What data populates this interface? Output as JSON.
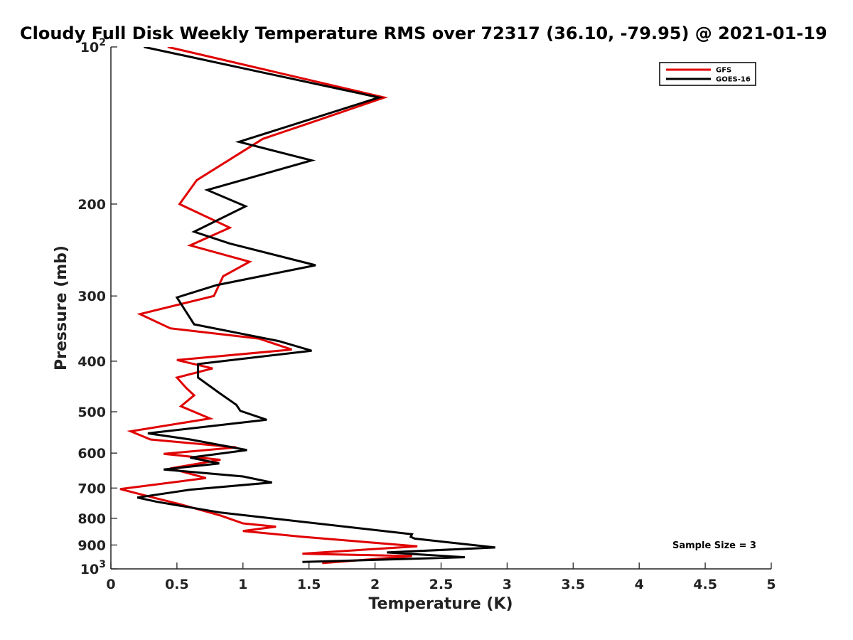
{
  "chart_data": {
    "type": "line",
    "title": "Cloudy Full Disk Weekly Temperature RMS over 72317 (36.10, -79.95) @ 2021-01-19",
    "xlabel": "Temperature (K)",
    "ylabel": "Pressure (mb)",
    "xlim": [
      0,
      5
    ],
    "ylim": [
      1000,
      100
    ],
    "yscale": "log",
    "y_reversed": true,
    "xticks": [
      0,
      0.5,
      1,
      1.5,
      2,
      2.5,
      3,
      3.5,
      4,
      4.5,
      5
    ],
    "xtick_labels": [
      "0",
      "0.5",
      "1",
      "1.5",
      "2",
      "2.5",
      "3",
      "3.5",
      "4",
      "4.5",
      "5"
    ],
    "yticks": [
      100,
      200,
      300,
      400,
      500,
      600,
      700,
      800,
      900,
      1000
    ],
    "ytick_labels": [
      {
        "text": "10",
        "sup": "2"
      },
      {
        "text": "200",
        "sup": ""
      },
      {
        "text": "300",
        "sup": ""
      },
      {
        "text": "400",
        "sup": ""
      },
      {
        "text": "500",
        "sup": ""
      },
      {
        "text": "600",
        "sup": ""
      },
      {
        "text": "700",
        "sup": ""
      },
      {
        "text": "800",
        "sup": ""
      },
      {
        "text": "900",
        "sup": ""
      },
      {
        "text": "10",
        "sup": "3"
      }
    ],
    "grid": false,
    "legend_position": "top-right",
    "annotation": "Sample Size = 3",
    "series": [
      {
        "name": "GFS",
        "color": "#e00000",
        "points": [
          [
            0.43,
            100
          ],
          [
            2.07,
            125
          ],
          [
            1.5,
            140
          ],
          [
            1.15,
            150
          ],
          [
            0.65,
            180
          ],
          [
            0.52,
            200
          ],
          [
            0.9,
            222
          ],
          [
            0.6,
            240
          ],
          [
            1.05,
            258
          ],
          [
            0.85,
            275
          ],
          [
            0.78,
            300
          ],
          [
            0.22,
            325
          ],
          [
            0.45,
            346
          ],
          [
            1.12,
            362
          ],
          [
            1.37,
            380
          ],
          [
            0.5,
            398
          ],
          [
            0.77,
            413
          ],
          [
            0.5,
            430
          ],
          [
            0.57,
            450
          ],
          [
            0.63,
            465
          ],
          [
            0.53,
            488
          ],
          [
            0.75,
            515
          ],
          [
            0.15,
            545
          ],
          [
            0.3,
            565
          ],
          [
            0.95,
            585
          ],
          [
            0.4,
            602
          ],
          [
            0.83,
            618
          ],
          [
            0.45,
            642
          ],
          [
            0.72,
            670
          ],
          [
            0.07,
            703
          ],
          [
            0.32,
            730
          ],
          [
            0.55,
            755
          ],
          [
            0.83,
            790
          ],
          [
            1.0,
            818
          ],
          [
            1.25,
            830
          ],
          [
            1.0,
            846
          ],
          [
            1.45,
            868
          ],
          [
            2.32,
            905
          ],
          [
            1.45,
            935
          ],
          [
            2.28,
            945
          ],
          [
            1.6,
            975
          ]
        ]
      },
      {
        "name": "GOES-16",
        "color": "#000000",
        "points": [
          [
            0.25,
            100
          ],
          [
            2.03,
            125
          ],
          [
            0.97,
            152
          ],
          [
            1.52,
            165
          ],
          [
            0.73,
            188
          ],
          [
            1.02,
            202
          ],
          [
            0.63,
            226
          ],
          [
            0.9,
            238
          ],
          [
            1.55,
            262
          ],
          [
            0.8,
            286
          ],
          [
            0.5,
            302
          ],
          [
            0.63,
            340
          ],
          [
            1.27,
            366
          ],
          [
            1.52,
            382
          ],
          [
            0.66,
            405
          ],
          [
            0.66,
            430
          ],
          [
            0.82,
            460
          ],
          [
            0.95,
            485
          ],
          [
            0.98,
            498
          ],
          [
            1.18,
            518
          ],
          [
            0.28,
            550
          ],
          [
            0.6,
            565
          ],
          [
            1.03,
            592
          ],
          [
            0.6,
            612
          ],
          [
            0.82,
            628
          ],
          [
            0.4,
            645
          ],
          [
            1.0,
            665
          ],
          [
            1.22,
            683
          ],
          [
            0.6,
            705
          ],
          [
            0.2,
            730
          ],
          [
            0.35,
            744
          ],
          [
            0.83,
            780
          ],
          [
            2.28,
            858
          ],
          [
            2.27,
            868
          ],
          [
            2.3,
            875
          ],
          [
            2.91,
            910
          ],
          [
            2.09,
            930
          ],
          [
            2.68,
            950
          ],
          [
            1.45,
            970
          ]
        ]
      }
    ]
  }
}
